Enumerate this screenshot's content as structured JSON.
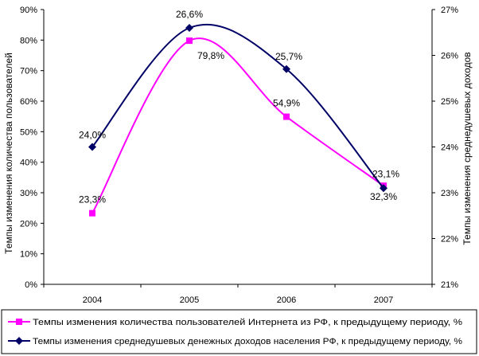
{
  "chart_data": {
    "type": "line",
    "categories": [
      "2004",
      "2005",
      "2006",
      "2007"
    ],
    "series": [
      {
        "name": "Темпы изменения количества пользователей Интернета из РФ, к предыдущему периоду, %",
        "axis": "left",
        "values": [
          23.3,
          79.8,
          54.9,
          32.3
        ],
        "labels": [
          "23,3%",
          "79,8%",
          "54,9%",
          "32,3%"
        ],
        "color": "#ff00ff",
        "marker": "square"
      },
      {
        "name": "Темпы изменения среднедушевых денежных доходов населения РФ, к предыдущему периоду, %",
        "axis": "right",
        "values": [
          24.0,
          26.6,
          25.7,
          23.1
        ],
        "labels": [
          "24,0%",
          "26,6%",
          "25,7%",
          "23,1%"
        ],
        "color": "#000066",
        "marker": "diamond"
      }
    ],
    "y_left": {
      "label": "Темпы изменения количества пользователей",
      "min": 0,
      "max": 90,
      "step": 10,
      "tick_labels": [
        "0%",
        "10%",
        "20%",
        "30%",
        "40%",
        "50%",
        "60%",
        "70%",
        "80%",
        "90%"
      ]
    },
    "y_right": {
      "label": "Темпы изменения среднедушевых доходов",
      "min": 21,
      "max": 27,
      "step": 1,
      "tick_labels": [
        "21%",
        "22%",
        "23%",
        "24%",
        "25%",
        "26%",
        "27%"
      ]
    },
    "smooth": true,
    "grid": false,
    "legend_position": "bottom"
  }
}
